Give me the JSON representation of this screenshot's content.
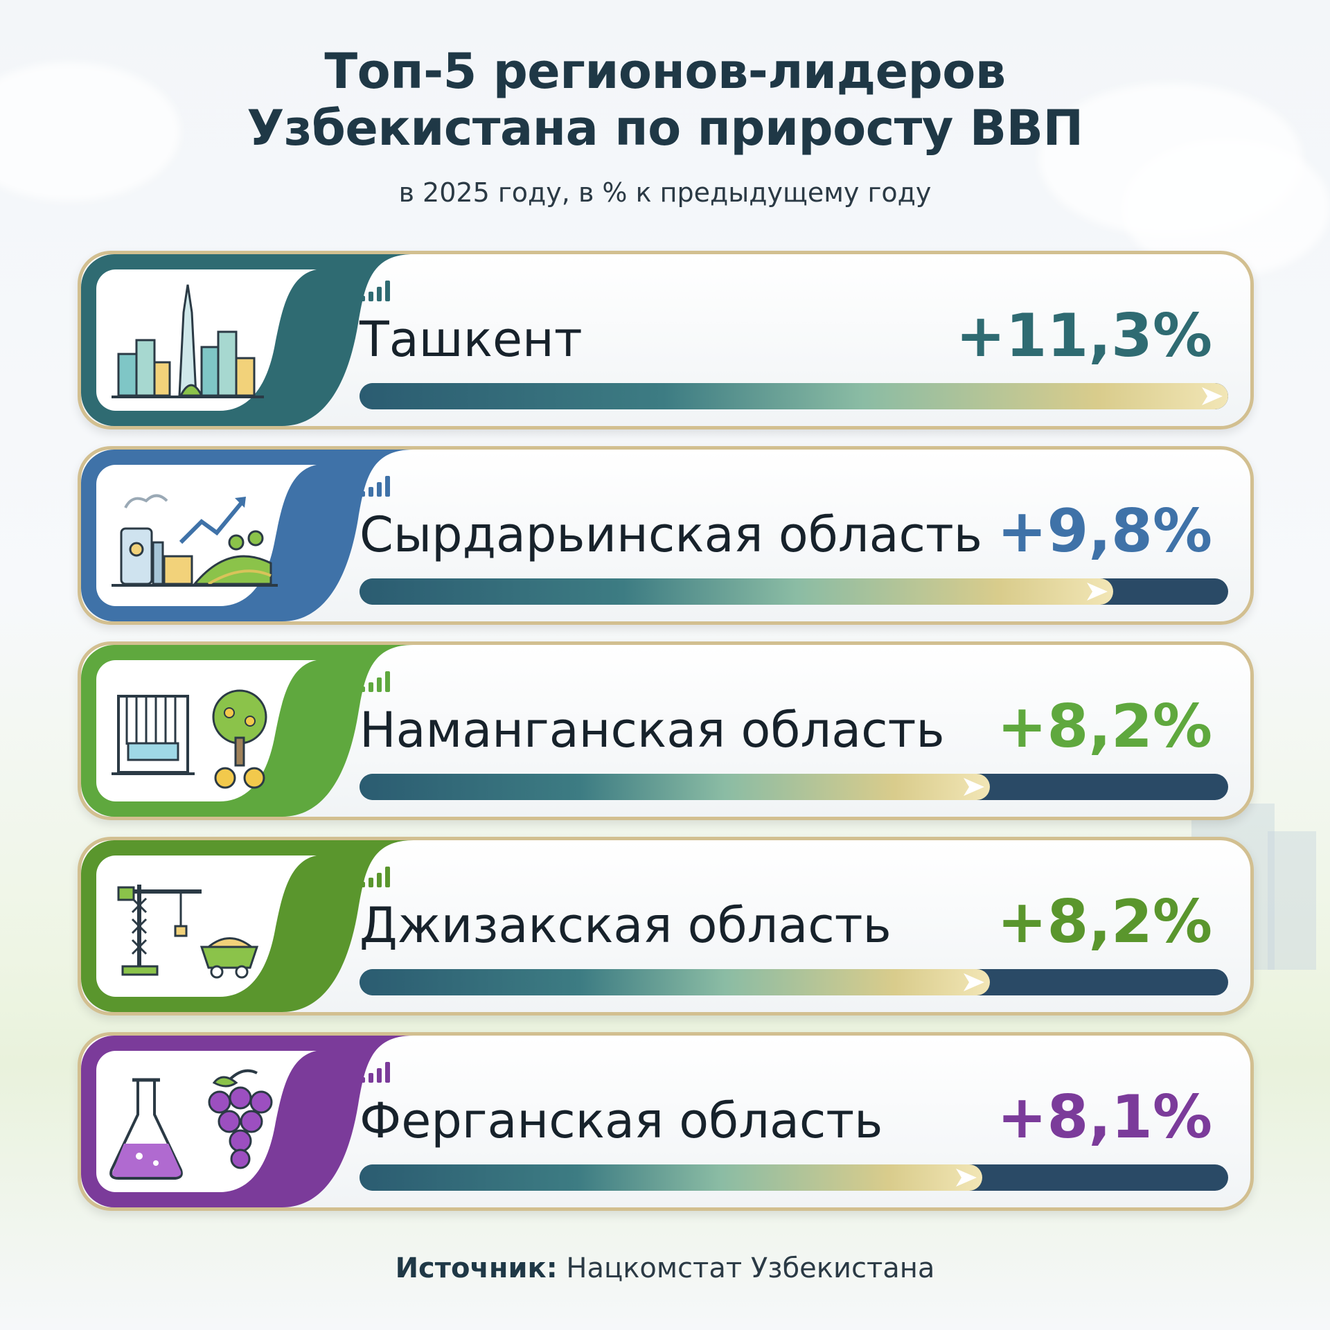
{
  "title_line1": "Топ-5 регионов-лидеров",
  "title_line2": "Узбекистана по приросту ВВП",
  "subtitle": "в 2025 году, в % к предыдущему году",
  "source_label": "Источник:",
  "source_value": "Нацкомстат Узбекистана",
  "colors": {
    "Ташкент": "#2f6b72",
    "Сырдарьинская область": "#3f72a8",
    "Наманганская область": "#5fa83e",
    "Джизакская область": "#5a962d",
    "Ферганская область": "#7b3b9a"
  },
  "icons": [
    "city-skyline-icon",
    "factory-growth-icon",
    "textile-loom-apple-tree-icon",
    "construction-crane-ore-cart-icon",
    "flask-grapes-icon"
  ],
  "chart_data": {
    "type": "bar",
    "orientation": "horizontal",
    "title": "Топ-5 регионов-лидеров Узбекистана по приросту ВВП",
    "subtitle": "в 2025 году, в % к предыдущему году",
    "unit": "%",
    "xlim": [
      0,
      11.3
    ],
    "categories": [
      "Ташкент",
      "Сырдарьинская область",
      "Наманганская область",
      "Джизакская область",
      "Ферганская область"
    ],
    "values": [
      11.3,
      9.8,
      8.2,
      8.2,
      8.1
    ],
    "labels": [
      "+11,3%",
      "+9,8%",
      "+8,2%",
      "+8,2%",
      "+8,1%"
    ]
  }
}
